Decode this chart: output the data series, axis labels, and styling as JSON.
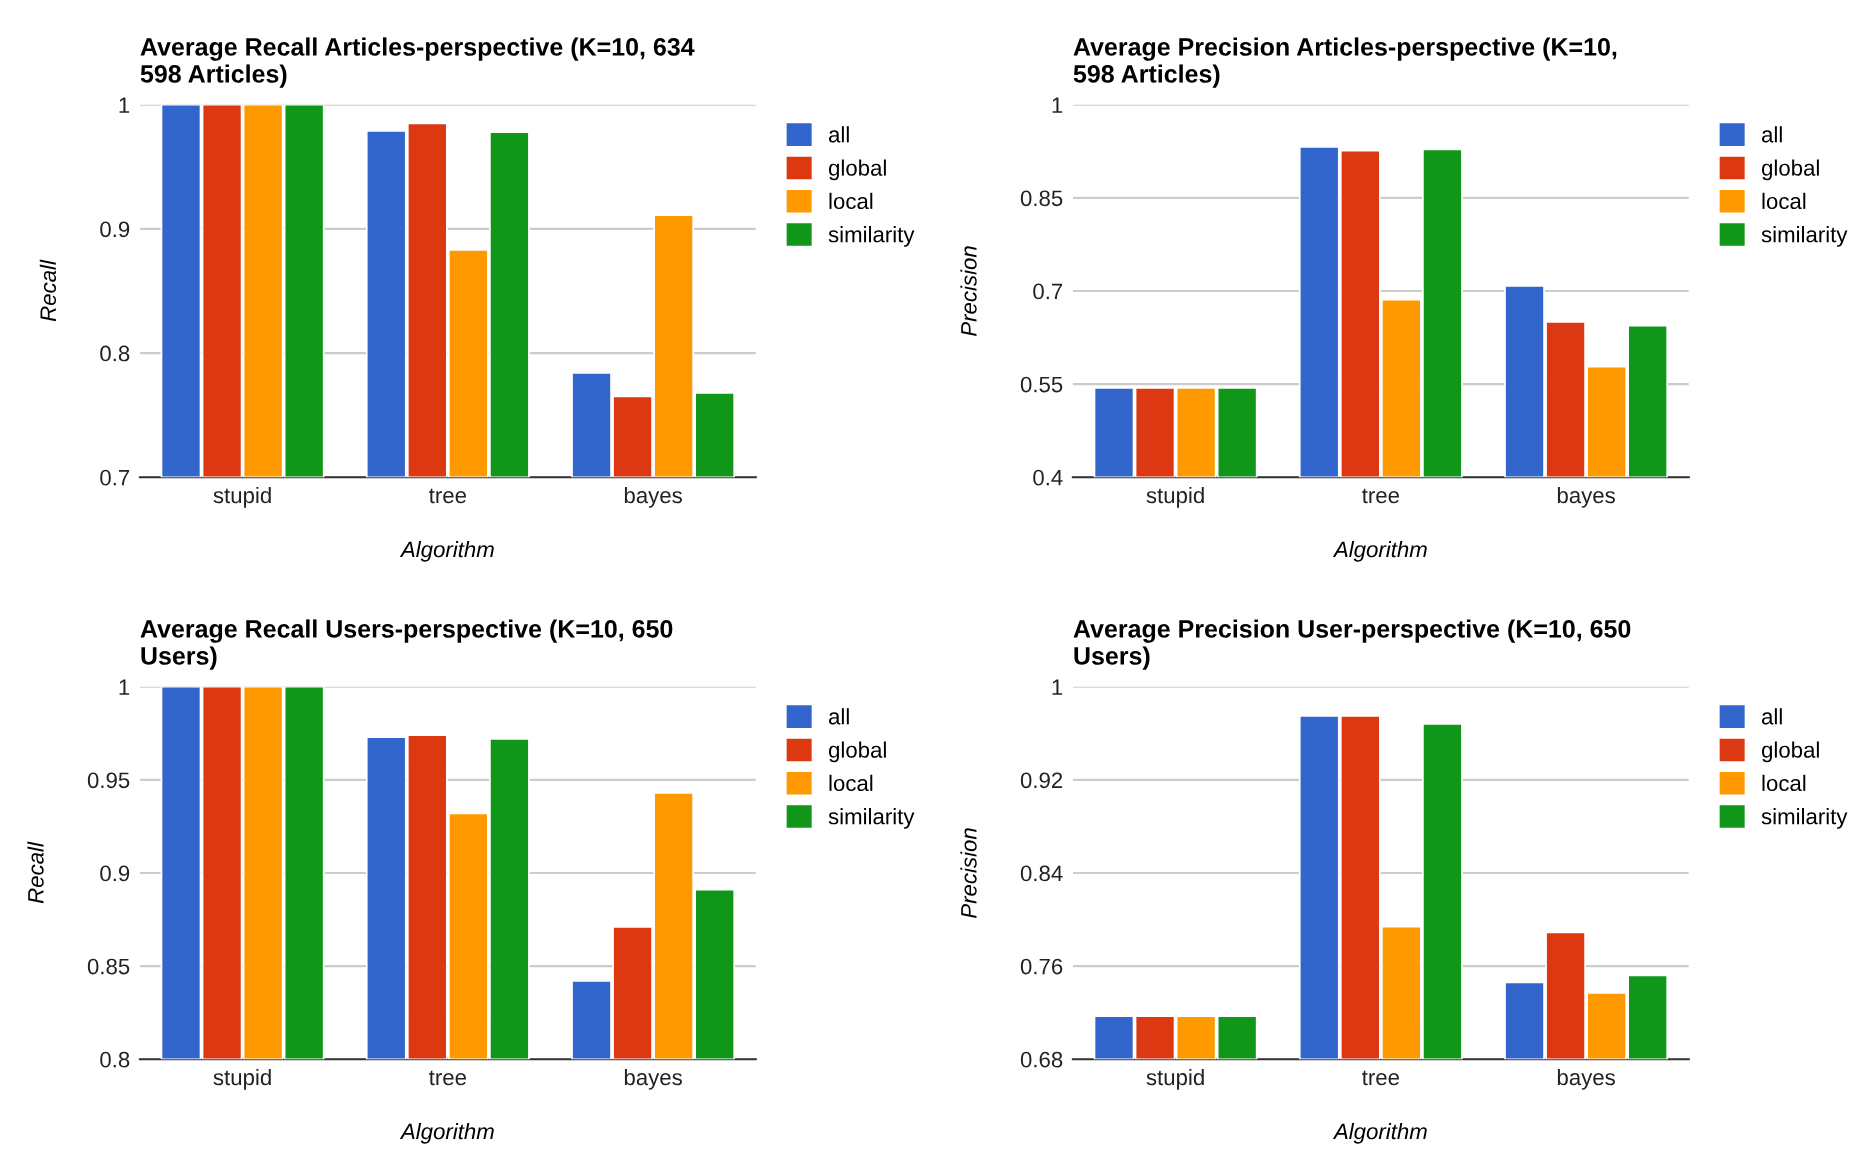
{
  "chart_data": [
    {
      "type": "bar",
      "title": "Average Recall Articles-perspective (K=10, 634\n598 Articles)",
      "xlabel": "Algorithm",
      "ylabel": "Recall",
      "categories": [
        "stupid",
        "tree",
        "bayes"
      ],
      "ylim": [
        0.7,
        1
      ],
      "yticks": [
        0.7,
        0.8,
        0.9,
        1
      ],
      "grid": "y",
      "legend": "right",
      "series": [
        {
          "name": "all",
          "color": "#3366cc",
          "values": [
            1,
            0.979,
            0.784
          ]
        },
        {
          "name": "global",
          "color": "#dc3912",
          "values": [
            1,
            0.985,
            0.765
          ]
        },
        {
          "name": "local",
          "color": "#ff9900",
          "values": [
            1,
            0.883,
            0.911
          ]
        },
        {
          "name": "similarity",
          "color": "#109618",
          "values": [
            1,
            0.978,
            0.768
          ]
        }
      ]
    },
    {
      "type": "bar",
      "title": "Average Precision Articles-perspective (K=10,\n598 Articles)",
      "xlabel": "Algorithm",
      "ylabel": "Precision",
      "categories": [
        "stupid",
        "tree",
        "bayes"
      ],
      "ylim": [
        0.4,
        1
      ],
      "yticks": [
        0.4,
        0.55,
        0.7,
        0.85,
        1
      ],
      "grid": "y",
      "legend": "right",
      "series": [
        {
          "name": "all",
          "color": "#3366cc",
          "values": [
            0.544,
            0.932,
            0.708
          ]
        },
        {
          "name": "global",
          "color": "#dc3912",
          "values": [
            0.544,
            0.926,
            0.65
          ]
        },
        {
          "name": "local",
          "color": "#ff9900",
          "values": [
            0.544,
            0.686,
            0.578
          ]
        },
        {
          "name": "similarity",
          "color": "#109618",
          "values": [
            0.544,
            0.928,
            0.644
          ]
        }
      ]
    },
    {
      "type": "bar",
      "title": "Average Recall Users-perspective (K=10, 650\nUsers)",
      "xlabel": "Algorithm",
      "ylabel": "Recall",
      "categories": [
        "stupid",
        "tree",
        "bayes"
      ],
      "ylim": [
        0.8,
        1
      ],
      "yticks": [
        0.8,
        0.85,
        0.9,
        0.95,
        1
      ],
      "grid": "y",
      "legend": "right",
      "series": [
        {
          "name": "all",
          "color": "#3366cc",
          "values": [
            1,
            0.973,
            0.842
          ]
        },
        {
          "name": "global",
          "color": "#dc3912",
          "values": [
            1,
            0.974,
            0.871
          ]
        },
        {
          "name": "local",
          "color": "#ff9900",
          "values": [
            1,
            0.932,
            0.943
          ]
        },
        {
          "name": "similarity",
          "color": "#109618",
          "values": [
            1,
            0.972,
            0.891
          ]
        }
      ]
    },
    {
      "type": "bar",
      "title": "Average Precision User-perspective (K=10, 650\nUsers)",
      "xlabel": "Algorithm",
      "ylabel": "Precision",
      "categories": [
        "stupid",
        "tree",
        "bayes"
      ],
      "ylim": [
        0.68,
        1
      ],
      "yticks": [
        0.68,
        0.76,
        0.84,
        0.92,
        1
      ],
      "grid": "y",
      "legend": "right",
      "series": [
        {
          "name": "all",
          "color": "#3366cc",
          "values": [
            0.717,
            0.975,
            0.746
          ]
        },
        {
          "name": "global",
          "color": "#dc3912",
          "values": [
            0.717,
            0.975,
            0.789
          ]
        },
        {
          "name": "local",
          "color": "#ff9900",
          "values": [
            0.717,
            0.794,
            0.737
          ]
        },
        {
          "name": "similarity",
          "color": "#109618",
          "values": [
            0.717,
            0.968,
            0.752
          ]
        }
      ]
    }
  ]
}
